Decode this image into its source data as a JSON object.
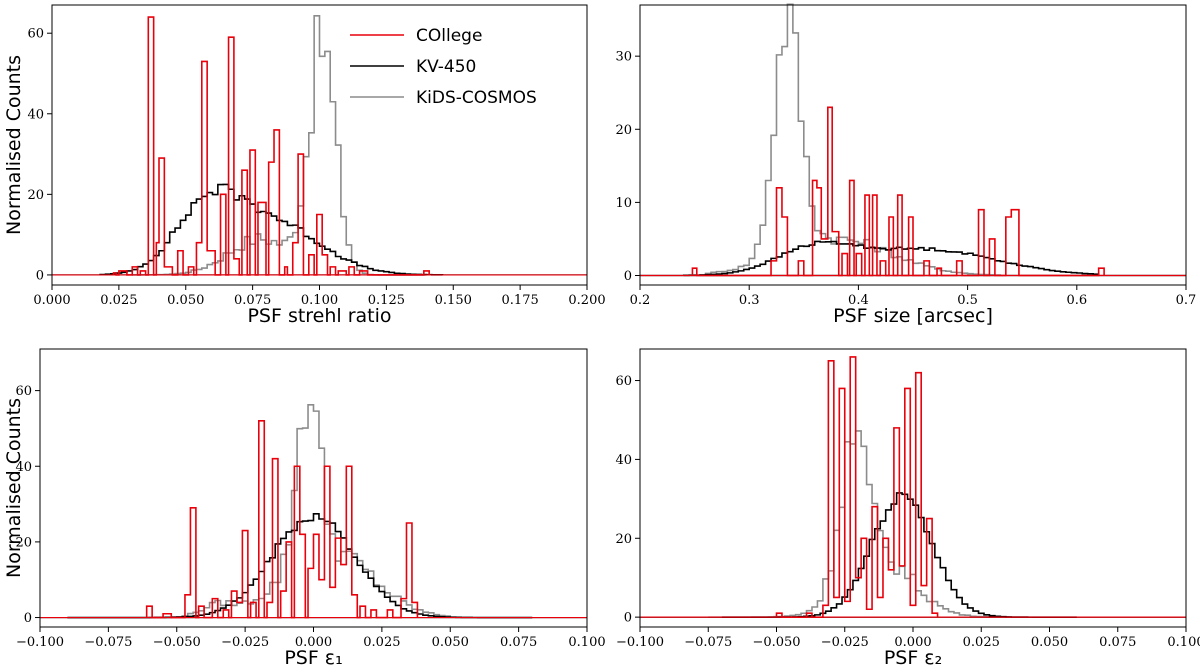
{
  "colors": {
    "COllege": "#e8000b",
    "KV-450": "#000000",
    "KiDS-COSMOS": "#8c8c8c"
  },
  "legend": {
    "entries": [
      "COllege",
      "KV-450",
      "KiDS-COSMOS"
    ],
    "placement": "top-right of first panel"
  },
  "chart_data": [
    {
      "type": "histogram",
      "xlabel": "PSF strehl ratio",
      "ylabel": "Normalised Counts",
      "xlim": [
        0.0,
        0.2
      ],
      "ylim": [
        -2.5,
        67
      ],
      "xticks": [
        0.0,
        0.025,
        0.05,
        0.075,
        0.1,
        0.125,
        0.15,
        0.175,
        0.2
      ],
      "xtick_labels": [
        "0.000",
        "0.025",
        "0.050",
        "0.075",
        "0.100",
        "0.125",
        "0.150",
        "0.175",
        "0.200"
      ],
      "yticks": [
        0,
        20,
        40,
        60
      ],
      "ytick_labels": [
        "0",
        "20",
        "40",
        "60"
      ],
      "series": [
        {
          "name": "COllege",
          "bins": [
            [
              0.023,
              0.024,
              0.5
            ],
            [
              0.025,
              0.028,
              1
            ],
            [
              0.03,
              0.032,
              2
            ],
            [
              0.033,
              0.035,
              1
            ],
            [
              0.036,
              0.038,
              64
            ],
            [
              0.039,
              0.04,
              8
            ],
            [
              0.04,
              0.042,
              29
            ],
            [
              0.042,
              0.045,
              2
            ],
            [
              0.047,
              0.049,
              6
            ],
            [
              0.051,
              0.053,
              2
            ],
            [
              0.054,
              0.056,
              8
            ],
            [
              0.056,
              0.058,
              53
            ],
            [
              0.058,
              0.061,
              6
            ],
            [
              0.063,
              0.065,
              20
            ],
            [
              0.066,
              0.068,
              59
            ],
            [
              0.068,
              0.07,
              4
            ],
            [
              0.071,
              0.073,
              26
            ],
            [
              0.074,
              0.076,
              31
            ],
            [
              0.077,
              0.08,
              18
            ],
            [
              0.081,
              0.083,
              28
            ],
            [
              0.083,
              0.085,
              36
            ],
            [
              0.087,
              0.088,
              2
            ],
            [
              0.09,
              0.092,
              8
            ],
            [
              0.092,
              0.094,
              30
            ],
            [
              0.096,
              0.098,
              5
            ],
            [
              0.099,
              0.101,
              15
            ],
            [
              0.101,
              0.103,
              5
            ],
            [
              0.104,
              0.106,
              2
            ],
            [
              0.107,
              0.11,
              1
            ],
            [
              0.111,
              0.113,
              2
            ],
            [
              0.115,
              0.118,
              1
            ],
            [
              0.139,
              0.141,
              1
            ]
          ]
        },
        {
          "name": "KV-450",
          "curve": {
            "x0": 0.018,
            "x1": 0.146,
            "bins": 64,
            "peaks": [
              {
                "mu": 0.058,
                "sigma": 0.012,
                "amp": 15
              },
              {
                "mu": 0.082,
                "sigma": 0.018,
                "amp": 13
              }
            ],
            "jitter": 0.08
          }
        },
        {
          "name": "KiDS-COSMOS",
          "curve": {
            "x0": 0.03,
            "x1": 0.14,
            "bins": 55,
            "peaks": [
              {
                "mu": 0.101,
                "sigma": 0.005,
                "amp": 56
              },
              {
                "mu": 0.078,
                "sigma": 0.012,
                "amp": 9
              }
            ],
            "jitter": 0.2
          }
        }
      ]
    },
    {
      "type": "histogram",
      "xlabel": "PSF size [arcsec]",
      "ylabel": "",
      "xlim": [
        0.2,
        0.7
      ],
      "ylim": [
        -1.3,
        37
      ],
      "xticks": [
        0.2,
        0.3,
        0.4,
        0.5,
        0.6,
        0.7
      ],
      "xtick_labels": [
        "0.2",
        "0.3",
        "0.4",
        "0.5",
        "0.6",
        "0.7"
      ],
      "yticks": [
        0,
        10,
        20,
        30
      ],
      "ytick_labels": [
        "0",
        "10",
        "20",
        "30"
      ],
      "series": [
        {
          "name": "COllege",
          "bins": [
            [
              0.248,
              0.252,
              1
            ],
            [
              0.32,
              0.325,
              2
            ],
            [
              0.325,
              0.33,
              12
            ],
            [
              0.33,
              0.335,
              8
            ],
            [
              0.345,
              0.35,
              2
            ],
            [
              0.358,
              0.362,
              13
            ],
            [
              0.362,
              0.366,
              12
            ],
            [
              0.366,
              0.372,
              5
            ],
            [
              0.372,
              0.376,
              23
            ],
            [
              0.376,
              0.382,
              6
            ],
            [
              0.385,
              0.39,
              3
            ],
            [
              0.392,
              0.396,
              13
            ],
            [
              0.398,
              0.403,
              3
            ],
            [
              0.406,
              0.41,
              11
            ],
            [
              0.413,
              0.417,
              11
            ],
            [
              0.42,
              0.425,
              2
            ],
            [
              0.428,
              0.432,
              8
            ],
            [
              0.436,
              0.44,
              11
            ],
            [
              0.446,
              0.45,
              8
            ],
            [
              0.46,
              0.465,
              2
            ],
            [
              0.472,
              0.476,
              1
            ],
            [
              0.49,
              0.495,
              2
            ],
            [
              0.51,
              0.515,
              9
            ],
            [
              0.52,
              0.525,
              5
            ],
            [
              0.535,
              0.54,
              8
            ],
            [
              0.54,
              0.547,
              9
            ],
            [
              0.62,
              0.625,
              1
            ]
          ]
        },
        {
          "name": "KV-450",
          "curve": {
            "x0": 0.24,
            "x1": 0.62,
            "bins": 76,
            "peaks": [
              {
                "mu": 0.36,
                "sigma": 0.035,
                "amp": 3.3
              },
              {
                "mu": 0.46,
                "sigma": 0.065,
                "amp": 3.6
              }
            ],
            "jitter": 0.05
          }
        },
        {
          "name": "KiDS-COSMOS",
          "curve": {
            "x0": 0.26,
            "x1": 0.53,
            "bins": 54,
            "peaks": [
              {
                "mu": 0.335,
                "sigma": 0.012,
                "amp": 32
              },
              {
                "mu": 0.38,
                "sigma": 0.05,
                "amp": 5
              }
            ],
            "jitter": 0.15
          }
        }
      ]
    },
    {
      "type": "histogram",
      "xlabel": "PSF ε₁",
      "ylabel": "Normalised Counts",
      "xlim": [
        -0.1,
        0.1
      ],
      "ylim": [
        -2.5,
        71
      ],
      "xticks": [
        -0.1,
        -0.075,
        -0.05,
        -0.025,
        0.0,
        0.025,
        0.05,
        0.075,
        0.1
      ],
      "xtick_labels": [
        "−0.100",
        "−0.075",
        "−0.050",
        "−0.025",
        "0.000",
        "0.025",
        "0.050",
        "0.075",
        "0.100"
      ],
      "yticks": [
        0,
        20,
        40,
        60
      ],
      "ytick_labels": [
        "0",
        "20",
        "40",
        "60"
      ],
      "series": [
        {
          "name": "COllege",
          "bins": [
            [
              -0.061,
              -0.059,
              3
            ],
            [
              -0.055,
              -0.052,
              1
            ],
            [
              -0.047,
              -0.045,
              6
            ],
            [
              -0.045,
              -0.043,
              29
            ],
            [
              -0.042,
              -0.04,
              3
            ],
            [
              -0.037,
              -0.035,
              5
            ],
            [
              -0.033,
              -0.031,
              2
            ],
            [
              -0.03,
              -0.028,
              7
            ],
            [
              -0.028,
              -0.026,
              4
            ],
            [
              -0.026,
              -0.024,
              23
            ],
            [
              -0.023,
              -0.021,
              4
            ],
            [
              -0.02,
              -0.018,
              52
            ],
            [
              -0.017,
              -0.015,
              4
            ],
            [
              -0.015,
              -0.013,
              42
            ],
            [
              -0.012,
              -0.01,
              7
            ],
            [
              -0.01,
              -0.008,
              20
            ],
            [
              -0.007,
              -0.005,
              40
            ],
            [
              -0.005,
              -0.003,
              22
            ],
            [
              -0.002,
              0.0,
              13
            ],
            [
              0.0,
              0.002,
              22
            ],
            [
              0.002,
              0.004,
              10
            ],
            [
              0.004,
              0.006,
              40
            ],
            [
              0.006,
              0.008,
              8
            ],
            [
              0.008,
              0.01,
              21
            ],
            [
              0.01,
              0.012,
              14
            ],
            [
              0.012,
              0.014,
              40
            ],
            [
              0.014,
              0.016,
              6
            ],
            [
              0.017,
              0.019,
              3
            ],
            [
              0.021,
              0.023,
              2
            ],
            [
              0.027,
              0.029,
              2
            ],
            [
              0.032,
              0.034,
              5
            ],
            [
              0.034,
              0.036,
              25
            ],
            [
              0.036,
              0.038,
              4
            ]
          ]
        },
        {
          "name": "KV-450",
          "curve": {
            "x0": -0.09,
            "x1": 0.08,
            "bins": 85,
            "peaks": [
              {
                "mu": 0.0,
                "sigma": 0.015,
                "amp": 27
              }
            ],
            "jitter": 0.05
          }
        },
        {
          "name": "KiDS-COSMOS",
          "curve": {
            "x0": -0.06,
            "x1": 0.05,
            "bins": 55,
            "peaks": [
              {
                "mu": -0.002,
                "sigma": 0.004,
                "amp": 45
              },
              {
                "mu": 0.005,
                "sigma": 0.016,
                "amp": 18
              },
              {
                "mu": -0.035,
                "sigma": 0.006,
                "amp": 3
              }
            ],
            "jitter": 0.2
          }
        }
      ]
    },
    {
      "type": "histogram",
      "xlabel": "PSF ε₂",
      "ylabel": "",
      "xlim": [
        -0.1,
        0.1
      ],
      "ylim": [
        -2.5,
        68
      ],
      "xticks": [
        -0.1,
        -0.075,
        -0.05,
        -0.025,
        0.0,
        0.025,
        0.05,
        0.075,
        0.1
      ],
      "xtick_labels": [
        "−0.100",
        "−0.075",
        "−0.050",
        "−0.025",
        "0.000",
        "0.025",
        "0.050",
        "0.075",
        "0.100"
      ],
      "yticks": [
        0,
        20,
        40,
        60
      ],
      "ytick_labels": [
        "0",
        "20",
        "40",
        "60"
      ],
      "series": [
        {
          "name": "COllege",
          "bins": [
            [
              -0.05,
              -0.048,
              1
            ],
            [
              -0.039,
              -0.037,
              1
            ],
            [
              -0.033,
              -0.031,
              3
            ],
            [
              -0.031,
              -0.029,
              65
            ],
            [
              -0.029,
              -0.027,
              5
            ],
            [
              -0.027,
              -0.025,
              58
            ],
            [
              -0.025,
              -0.023,
              4
            ],
            [
              -0.023,
              -0.021,
              66
            ],
            [
              -0.021,
              -0.019,
              10
            ],
            [
              -0.019,
              -0.017,
              20
            ],
            [
              -0.017,
              -0.015,
              2
            ],
            [
              -0.015,
              -0.013,
              28
            ],
            [
              -0.013,
              -0.011,
              5
            ],
            [
              -0.011,
              -0.009,
              20
            ],
            [
              -0.009,
              -0.007,
              12
            ],
            [
              -0.007,
              -0.005,
              48
            ],
            [
              -0.005,
              -0.003,
              13
            ],
            [
              -0.003,
              -0.001,
              58
            ],
            [
              -0.001,
              0.001,
              3
            ],
            [
              0.001,
              0.003,
              62
            ],
            [
              0.003,
              0.005,
              8
            ],
            [
              0.005,
              0.007,
              25
            ],
            [
              0.007,
              0.009,
              1
            ]
          ]
        },
        {
          "name": "KV-450",
          "curve": {
            "x0": -0.07,
            "x1": 0.06,
            "bins": 65,
            "peaks": [
              {
                "mu": -0.004,
                "sigma": 0.011,
                "amp": 31
              }
            ],
            "jitter": 0.05
          }
        },
        {
          "name": "KiDS-COSMOS",
          "curve": {
            "x0": -0.075,
            "x1": 0.035,
            "bins": 55,
            "peaks": [
              {
                "mu": -0.022,
                "sigma": 0.005,
                "amp": 35
              },
              {
                "mu": -0.012,
                "sigma": 0.012,
                "amp": 15
              }
            ],
            "jitter": 0.2
          }
        }
      ]
    }
  ]
}
